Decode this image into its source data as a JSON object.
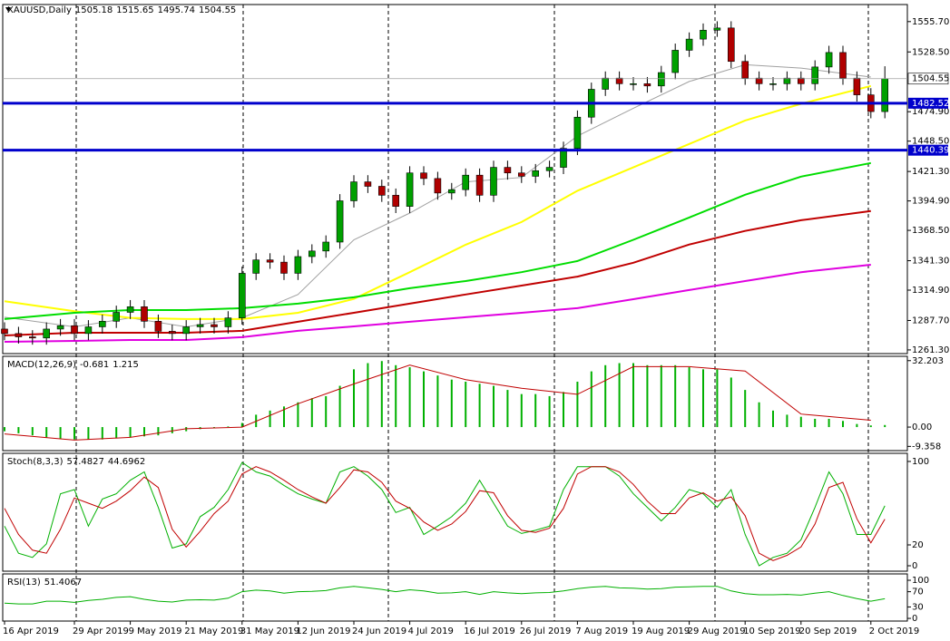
{
  "chart_data": {
    "type": "candlestick",
    "title": "XAUUSD,Daily",
    "header_values": [
      1505.18,
      1515.65,
      1495.74,
      1504.55
    ],
    "categories": [
      "16 Apr 2019",
      null,
      null,
      null,
      null,
      "29 Apr 2019",
      null,
      null,
      null,
      "9 May 2019",
      null,
      null,
      null,
      "21 May 2019",
      null,
      null,
      null,
      "31 May 2019",
      null,
      null,
      null,
      "12 Jun 2019",
      null,
      null,
      null,
      "24 Jun 2019",
      null,
      null,
      null,
      "4 Jul 2019",
      null,
      null,
      null,
      "16 Jul 2019",
      null,
      null,
      null,
      "26 Jul 2019",
      null,
      null,
      null,
      "7 Aug 2019",
      null,
      null,
      null,
      "19 Aug 2019",
      null,
      null,
      null,
      "29 Aug 2019",
      null,
      null,
      null,
      "10 Sep 2019",
      null,
      null,
      null,
      "20 Sep 2019",
      null,
      null,
      null,
      null,
      "2 Oct 2019",
      null
    ],
    "open": [
      1280,
      1276,
      1273,
      1272,
      1280,
      1283,
      1276,
      1282,
      1287,
      1295,
      1300,
      1287,
      1278,
      1276,
      1282,
      1284,
      1282,
      1290,
      1330,
      1342,
      1340,
      1330,
      1345,
      1350,
      1358,
      1395,
      1412,
      1408,
      1400,
      1390,
      1420,
      1415,
      1402,
      1405,
      1418,
      1400,
      1425,
      1420,
      1417,
      1422,
      1425,
      1442,
      1470,
      1495,
      1505,
      1500,
      1500,
      1498,
      1510,
      1530,
      1540,
      1548,
      1550,
      1520,
      1505,
      1500,
      1500,
      1505,
      1500,
      1515,
      1528,
      1505,
      1490,
      1475
    ],
    "high": [
      1286,
      1282,
      1279,
      1286,
      1289,
      1289,
      1288,
      1293,
      1301,
      1306,
      1306,
      1293,
      1284,
      1288,
      1290,
      1290,
      1296,
      1336,
      1348,
      1348,
      1346,
      1351,
      1356,
      1364,
      1401,
      1418,
      1418,
      1414,
      1406,
      1426,
      1426,
      1421,
      1411,
      1424,
      1424,
      1431,
      1431,
      1426,
      1428,
      1431,
      1448,
      1476,
      1501,
      1511,
      1511,
      1506,
      1506,
      1516,
      1536,
      1546,
      1554,
      1556,
      1556,
      1526,
      1511,
      1506,
      1511,
      1511,
      1521,
      1534,
      1534,
      1511,
      1496,
      1515.65
    ],
    "low": [
      1270,
      1267,
      1266,
      1266,
      1274,
      1270,
      1270,
      1276,
      1281,
      1289,
      1281,
      1272,
      1270,
      1270,
      1276,
      1276,
      1276,
      1284,
      1324,
      1334,
      1324,
      1324,
      1339,
      1344,
      1352,
      1389,
      1402,
      1394,
      1384,
      1384,
      1409,
      1396,
      1396,
      1399,
      1394,
      1394,
      1414,
      1411,
      1411,
      1416,
      1419,
      1436,
      1464,
      1489,
      1494,
      1494,
      1492,
      1492,
      1504,
      1524,
      1534,
      1542,
      1514,
      1499,
      1494,
      1494,
      1494,
      1494,
      1494,
      1509,
      1499,
      1484,
      1469,
      1469
    ],
    "close": [
      1276,
      1273,
      1272,
      1280,
      1283,
      1276,
      1282,
      1287,
      1295,
      1300,
      1287,
      1278,
      1276,
      1282,
      1284,
      1282,
      1290,
      1330,
      1342,
      1340,
      1330,
      1345,
      1350,
      1358,
      1395,
      1412,
      1408,
      1400,
      1390,
      1420,
      1415,
      1402,
      1405,
      1418,
      1400,
      1425,
      1420,
      1417,
      1422,
      1425,
      1442,
      1470,
      1495,
      1505,
      1500,
      1500,
      1498,
      1510,
      1530,
      1540,
      1548,
      1550,
      1520,
      1505,
      1500,
      1500,
      1505,
      1500,
      1515,
      1528,
      1505,
      1490,
      1475,
      1504.55
    ],
    "up_color": "#00a000",
    "down_color": "#b00000",
    "ylim": [
      1258,
      1571
    ],
    "yticks": [
      {
        "value": 1555.7,
        "label": "1555.70"
      },
      {
        "value": 1528.5,
        "label": "1528.50"
      },
      {
        "value": 1474.9,
        "label": "1474.90"
      },
      {
        "value": 1448.5,
        "label": "1448.50"
      },
      {
        "value": 1421.3,
        "label": "1421.30"
      },
      {
        "value": 1394.9,
        "label": "1394.90"
      },
      {
        "value": 1368.5,
        "label": "1368.50"
      },
      {
        "value": 1341.3,
        "label": "1341.30"
      },
      {
        "value": 1314.9,
        "label": "1314.90"
      },
      {
        "value": 1287.7,
        "label": "1287.70"
      },
      {
        "value": 1261.3,
        "label": "1261.30"
      }
    ],
    "overlays": [
      {
        "color": "#a0a0a0",
        "x": [
          "16 Apr 2019",
          "29 Apr 2019",
          "9 May 2019",
          "21 May 2019",
          "31 May 2019",
          "12 Jun 2019",
          "24 Jun 2019",
          "4 Jul 2019",
          "16 Jul 2019",
          "26 Jul 2019",
          "7 Aug 2019",
          "19 Aug 2019",
          "29 Aug 2019",
          "10 Sep 2019",
          "20 Sep 2019",
          "2 Oct 2019"
        ],
        "values": [
          1290.6,
          1282,
          1290,
          1282,
          1290,
          1311,
          1360,
          1384,
          1412,
          1416,
          1453,
          1478,
          1502,
          1517,
          1514,
          1506
        ]
      },
      {
        "color": "#ffff00",
        "x": [
          "16 Apr 2019",
          "29 Apr 2019",
          "9 May 2019",
          "21 May 2019",
          "31 May 2019",
          "12 Jun 2019",
          "24 Jun 2019",
          "4 Jul 2019",
          "16 Jul 2019",
          "26 Jul 2019",
          "7 Aug 2019",
          "19 Aug 2019",
          "29 Aug 2019",
          "10 Sep 2019",
          "20 Sep 2019",
          "2 Oct 2019"
        ],
        "values": [
          1305,
          1296,
          1290,
          1289,
          1289,
          1294.6,
          1307,
          1331,
          1355.6,
          1376,
          1404,
          1425,
          1446,
          1467,
          1482,
          1498
        ]
      },
      {
        "color": "#00dd00",
        "x": [
          "16 Apr 2019",
          "29 Apr 2019",
          "9 May 2019",
          "21 May 2019",
          "31 May 2019",
          "12 Jun 2019",
          "24 Jun 2019",
          "4 Jul 2019",
          "16 Jul 2019",
          "26 Jul 2019",
          "7 Aug 2019",
          "19 Aug 2019",
          "29 Aug 2019",
          "10 Sep 2019",
          "20 Sep 2019",
          "2 Oct 2019"
        ],
        "values": [
          1289,
          1294.6,
          1297,
          1297,
          1298.7,
          1302.8,
          1308.5,
          1316.6,
          1323,
          1331,
          1341,
          1360,
          1380,
          1400.4,
          1416.7,
          1428.9
        ]
      },
      {
        "color": "#c00000",
        "x": [
          "16 Apr 2019",
          "29 Apr 2019",
          "9 May 2019",
          "21 May 2019",
          "31 May 2019",
          "12 Jun 2019",
          "24 Jun 2019",
          "4 Jul 2019",
          "16 Jul 2019",
          "26 Jul 2019",
          "7 Aug 2019",
          "19 Aug 2019",
          "29 Aug 2019",
          "10 Sep 2019",
          "20 Sep 2019",
          "2 Oct 2019"
        ],
        "values": [
          1274.3,
          1276.7,
          1276.7,
          1276.7,
          1278.4,
          1286.5,
          1294.6,
          1302.8,
          1311,
          1319,
          1327,
          1339.5,
          1355.8,
          1368,
          1377.6,
          1385.8
        ]
      },
      {
        "color": "#e000e0",
        "x": [
          "16 Apr 2019",
          "29 Apr 2019",
          "9 May 2019",
          "21 May 2019",
          "31 May 2019",
          "12 Jun 2019",
          "24 Jun 2019",
          "4 Jul 2019",
          "16 Jul 2019",
          "26 Jul 2019",
          "7 Aug 2019",
          "19 Aug 2019",
          "29 Aug 2019",
          "10 Sep 2019",
          "20 Sep 2019",
          "2 Oct 2019"
        ],
        "values": [
          1268.6,
          1269.4,
          1270.2,
          1270.2,
          1272.7,
          1278.4,
          1282.4,
          1286.5,
          1290.6,
          1294.6,
          1298.7,
          1306.8,
          1315,
          1323,
          1331,
          1337.7
        ]
      }
    ],
    "levels": [
      {
        "value": 1482.52,
        "color": "#0000cc"
      },
      {
        "value": 1440.39,
        "color": "#0000cc"
      }
    ],
    "last_price": 1504.55,
    "panels": [
      {
        "type": "macd",
        "title": "MACD(12,26,9)",
        "header_values": [
          -0.681,
          1.215
        ],
        "ylim": [
          -11.4,
          34.3
        ],
        "yticks": [
          32.203,
          {
            "value": 0,
            "label": "0.00"
          },
          -9.358
        ],
        "histogram": {
          "color": "#00b000",
          "values": [
            -2,
            -3,
            -4,
            -5,
            -5.5,
            -6,
            -6,
            -6,
            -5.5,
            -5,
            -4.5,
            -4,
            -3,
            -2,
            -1,
            -0.5,
            0.3,
            2,
            6,
            8,
            10,
            12,
            14,
            15,
            20,
            28,
            31,
            32,
            30,
            29,
            27,
            25,
            23,
            22,
            21,
            20,
            18,
            16,
            16,
            15,
            17,
            22,
            27,
            30,
            31,
            31,
            30,
            30,
            30,
            29,
            28,
            28,
            24,
            18,
            12,
            8,
            6,
            5,
            4,
            4,
            3,
            1.5,
            0.8,
            1
          ]
        },
        "signal": {
          "color": "#c00000",
          "x": [
            "16 Apr 2019",
            "29 Apr 2019",
            "9 May 2019",
            "21 May 2019",
            "31 May 2019",
            "12 Jun 2019",
            "24 Jun 2019",
            "4 Jul 2019",
            "16 Jul 2019",
            "26 Jul 2019",
            "7 Aug 2019",
            "19 Aug 2019",
            "29 Aug 2019",
            "10 Sep 2019",
            "20 Sep 2019",
            "2 Oct 2019"
          ],
          "values": [
            -3.3,
            -6.3,
            -5,
            -0.8,
            0,
            11.3,
            20.9,
            30.1,
            23,
            18.8,
            15.9,
            29.3,
            29.3,
            27.2,
            6.3,
            3.3
          ]
        }
      },
      {
        "type": "line",
        "title": "Stoch(8,3,3)",
        "header_values": [
          57.4827,
          44.6962
        ],
        "ylim": [
          -5.2,
          107.8
        ],
        "yticks": [
          100,
          20,
          0
        ],
        "series": [
          {
            "color": "#00b000",
            "values": [
              38,
              12,
              8,
              21,
              69,
              73,
              38,
              64,
              69,
              82,
              90,
              56,
              17,
              21,
              47,
              56,
              73,
              99,
              90,
              86,
              77,
              69,
              64,
              60,
              90,
              95,
              86,
              73,
              51,
              56,
              30,
              38,
              47,
              60,
              82,
              60,
              38,
              31,
              34,
              38,
              73,
              95,
              95,
              95,
              86,
              69,
              56,
              43,
              56,
              73,
              69,
              56,
              73,
              30,
              0,
              8,
              12,
              25,
              56,
              90,
              69,
              30,
              30,
              57.48
            ]
          },
          {
            "color": "#c00000",
            "values": [
              55,
              30,
              15,
              12,
              35,
              65,
              60,
              55,
              62,
              72,
              85,
              75,
              35,
              18,
              33,
              50,
              62,
              88,
              95,
              90,
              82,
              73,
              66,
              60,
              75,
              92,
              90,
              80,
              62,
              55,
              42,
              34,
              40,
              52,
              72,
              70,
              48,
              34,
              32,
              36,
              55,
              88,
              95,
              95,
              90,
              78,
              62,
              50,
              50,
              65,
              70,
              62,
              66,
              48,
              12,
              5,
              10,
              18,
              40,
              75,
              80,
              45,
              22,
              44.7
            ]
          }
        ]
      },
      {
        "type": "line",
        "title": "RSI(13)",
        "header_values": [
          51.4067
        ],
        "ylim": [
          -7,
          116.7
        ],
        "yticks": [
          100,
          70,
          30,
          0
        ],
        "series": [
          {
            "color": "#00b000",
            "values": [
              40,
              38,
              38,
              45,
              45,
              42,
              47,
              50,
              55,
              57,
              50,
              45,
              43,
              48,
              49,
              48,
              53,
              70,
              74,
              72,
              66,
              70,
              71,
              73,
              80,
              84,
              80,
              76,
              70,
              75,
              72,
              66,
              67,
              70,
              63,
              70,
              67,
              65,
              67,
              68,
              72,
              78,
              82,
              84,
              80,
              79,
              77,
              78,
              82,
              83,
              84,
              84,
              72,
              65,
              62,
              62,
              63,
              61,
              66,
              70,
              60,
              52,
              45,
              51.41
            ]
          }
        ]
      }
    ]
  }
}
